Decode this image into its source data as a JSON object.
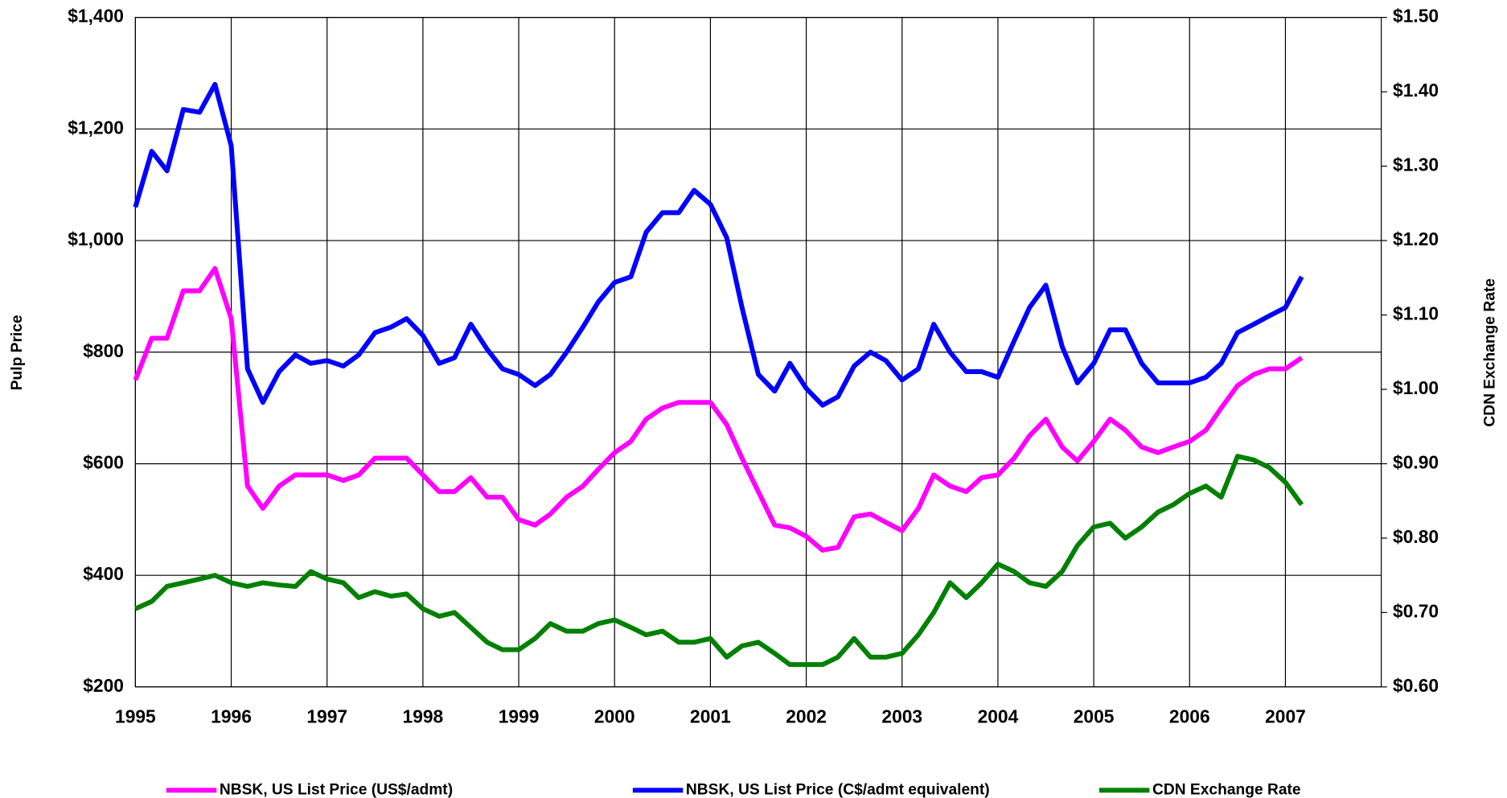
{
  "chart_data": {
    "type": "line",
    "y_label": "Pulp Price",
    "y2_label": "CDN Exchange Rate",
    "x": [
      1995.0,
      1995.17,
      1995.33,
      1995.5,
      1995.67,
      1995.83,
      1996.0,
      1996.17,
      1996.33,
      1996.5,
      1996.67,
      1996.83,
      1997.0,
      1997.17,
      1997.33,
      1997.5,
      1997.67,
      1997.83,
      1998.0,
      1998.17,
      1998.33,
      1998.5,
      1998.67,
      1998.83,
      1999.0,
      1999.17,
      1999.33,
      1999.5,
      1999.67,
      1999.83,
      2000.0,
      2000.17,
      2000.33,
      2000.5,
      2000.67,
      2000.83,
      2001.0,
      2001.17,
      2001.33,
      2001.5,
      2001.67,
      2001.83,
      2002.0,
      2002.17,
      2002.33,
      2002.5,
      2002.67,
      2002.83,
      2003.0,
      2003.17,
      2003.33,
      2003.5,
      2003.67,
      2003.83,
      2004.0,
      2004.17,
      2004.33,
      2004.5,
      2004.67,
      2004.83,
      2005.0,
      2005.17,
      2005.33,
      2005.5,
      2005.67,
      2005.83,
      2006.0,
      2006.17,
      2006.33,
      2006.5,
      2006.67,
      2006.83,
      2007.0,
      2007.17
    ],
    "series": [
      {
        "name": "NBSK, US List Price (US$/admt)",
        "color": "#ff00ff",
        "values": [
          750,
          825,
          825,
          910,
          910,
          950,
          860,
          560,
          520,
          560,
          580,
          580,
          580,
          570,
          580,
          610,
          610,
          610,
          580,
          550,
          550,
          575,
          540,
          540,
          500,
          490,
          510,
          540,
          560,
          590,
          620,
          640,
          680,
          700,
          710,
          710,
          710,
          670,
          610,
          550,
          490,
          485,
          470,
          445,
          450,
          505,
          510,
          495,
          480,
          520,
          580,
          560,
          550,
          575,
          580,
          610,
          650,
          680,
          630,
          605,
          640,
          680,
          660,
          630,
          620,
          630,
          640,
          660,
          700,
          740,
          760,
          770,
          770,
          790
        ]
      },
      {
        "name": "NBSK, US List Price (C$/admt equivalent)",
        "color": "#0000ff",
        "values": [
          1060,
          1160,
          1125,
          1235,
          1230,
          1280,
          1170,
          770,
          710,
          765,
          795,
          780,
          785,
          775,
          795,
          835,
          845,
          860,
          830,
          780,
          790,
          850,
          805,
          770,
          760,
          740,
          760,
          800,
          845,
          890,
          925,
          935,
          1015,
          1050,
          1050,
          1090,
          1065,
          1005,
          880,
          760,
          730,
          780,
          735,
          705,
          720,
          775,
          800,
          785,
          750,
          770,
          850,
          800,
          765,
          765,
          755,
          820,
          880,
          920,
          810,
          745,
          780,
          840,
          840,
          780,
          745,
          745,
          745,
          755,
          780,
          835,
          850,
          865,
          880,
          935
        ]
      },
      {
        "name": "CDN Exchange Rate",
        "color": "#008000",
        "axis": "y2",
        "values": [
          0.705,
          0.715,
          0.735,
          0.74,
          0.745,
          0.75,
          0.74,
          0.735,
          0.74,
          0.737,
          0.735,
          0.755,
          0.745,
          0.74,
          0.72,
          0.728,
          0.722,
          0.725,
          0.705,
          0.695,
          0.7,
          0.68,
          0.66,
          0.65,
          0.65,
          0.665,
          0.685,
          0.675,
          0.675,
          0.685,
          0.69,
          0.68,
          0.67,
          0.675,
          0.66,
          0.66,
          0.665,
          0.64,
          0.655,
          0.66,
          0.645,
          0.63,
          0.63,
          0.63,
          0.64,
          0.665,
          0.64,
          0.64,
          0.645,
          0.67,
          0.7,
          0.74,
          0.72,
          0.74,
          0.765,
          0.755,
          0.74,
          0.735,
          0.755,
          0.79,
          0.815,
          0.82,
          0.8,
          0.815,
          0.835,
          0.845,
          0.86,
          0.87,
          0.855,
          0.91,
          0.905,
          0.895,
          0.875,
          0.845
        ]
      }
    ],
    "xlim": [
      1995,
      2008
    ],
    "xticks": [
      1995,
      1996,
      1997,
      1998,
      1999,
      2000,
      2001,
      2002,
      2003,
      2004,
      2005,
      2006,
      2007
    ],
    "ylim": [
      200,
      1400
    ],
    "yticks": [
      {
        "value": 200,
        "label": "$200"
      },
      {
        "value": 400,
        "label": "$400"
      },
      {
        "value": 600,
        "label": "$600"
      },
      {
        "value": 800,
        "label": "$800"
      },
      {
        "value": 1000,
        "label": "$1,000"
      },
      {
        "value": 1200,
        "label": "$1,200"
      },
      {
        "value": 1400,
        "label": "$1,400"
      }
    ],
    "y2lim": [
      0.6,
      1.5
    ],
    "y2ticks": [
      {
        "value": 0.6,
        "label": "$0.60"
      },
      {
        "value": 0.7,
        "label": "$0.70"
      },
      {
        "value": 0.8,
        "label": "$0.80"
      },
      {
        "value": 0.9,
        "label": "$0.90"
      },
      {
        "value": 1.0,
        "label": "$1.00"
      },
      {
        "value": 1.1,
        "label": "$1.10"
      },
      {
        "value": 1.2,
        "label": "$1.20"
      },
      {
        "value": 1.3,
        "label": "$1.30"
      },
      {
        "value": 1.4,
        "label": "$1.40"
      },
      {
        "value": 1.5,
        "label": "$1.50"
      }
    ],
    "grid": true,
    "legend": "bottom"
  }
}
